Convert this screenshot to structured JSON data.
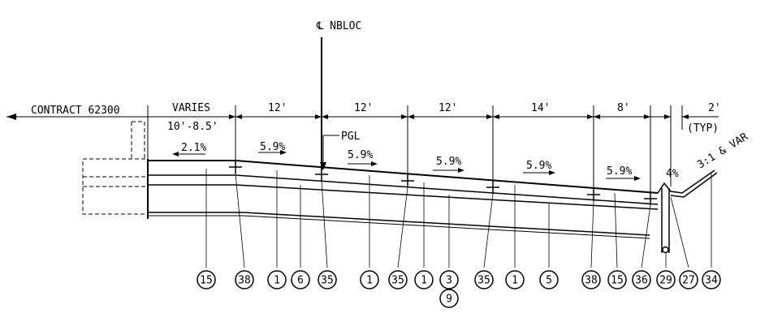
{
  "labels": {
    "centerline": "℄ NBLOC",
    "contract": "CONTRACT 62300",
    "pgl": "PGL",
    "slope_note": "3:1 & VAR",
    "typ": "(TYP)"
  },
  "dimensions": {
    "varies": "VARIES",
    "varies_range": "10'-8.5'",
    "d1": "12'",
    "d2": "12'",
    "d3": "12'",
    "d4": "14'",
    "d5": "8'",
    "d6": "2'"
  },
  "slopes": {
    "s_left": "2.1%",
    "s1": "5.9%",
    "s2": "5.9%",
    "s3": "5.9%",
    "s4": "5.9%",
    "s5": "5.9%",
    "s_shoulder": "4%"
  },
  "callouts": [
    "15",
    "38",
    "1",
    "6",
    "35",
    "1",
    "35",
    "1",
    "3",
    "35",
    "1",
    "5",
    "38",
    "15",
    "36",
    "29",
    "27",
    "34"
  ],
  "callout_below": "9"
}
